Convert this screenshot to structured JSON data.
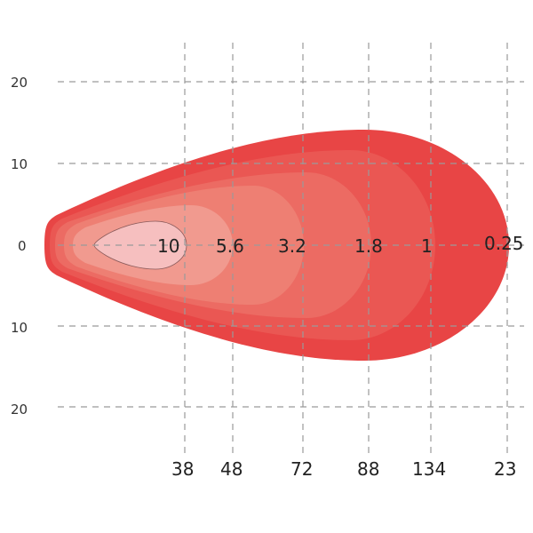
{
  "diagram": {
    "y_axis_labels": [
      "20",
      "10",
      "0",
      "10",
      "20"
    ],
    "contour_labels": [
      "10",
      "5.6",
      "3.2",
      "1.8",
      "1",
      "0.25"
    ],
    "distance_labels": [
      "38",
      "48",
      "72",
      "88",
      "134",
      "23"
    ],
    "colors": {
      "zone_0_25": "#e84545",
      "zone_1": "#ea5753",
      "zone_1_8": "#ec6b63",
      "zone_3_2": "#ee7f73",
      "zone_5_6": "#f19a8f",
      "zone_10": "#f6bfbf",
      "grid": "#9a9a9a"
    }
  }
}
